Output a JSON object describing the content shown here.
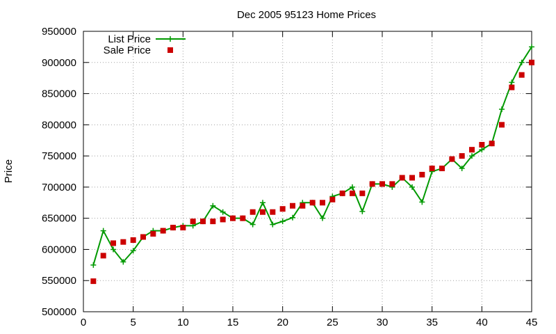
{
  "chart_data": {
    "type": "line",
    "title": "Dec 2005 95123 Home Prices",
    "xlabel": "",
    "ylabel": "Price",
    "xlim": [
      0,
      45
    ],
    "ylim": [
      500000,
      950000
    ],
    "xticks": [
      0,
      5,
      10,
      15,
      20,
      25,
      30,
      35,
      40,
      45
    ],
    "yticks": [
      500000,
      550000,
      600000,
      650000,
      700000,
      750000,
      800000,
      850000,
      900000,
      950000
    ],
    "grid": true,
    "legend": "top-left",
    "series": [
      {
        "name": "List Price",
        "style": "line-plus",
        "color": "#009900",
        "x": [
          1,
          2,
          3,
          4,
          5,
          6,
          7,
          8,
          9,
          10,
          11,
          12,
          13,
          14,
          15,
          16,
          17,
          18,
          19,
          20,
          21,
          22,
          23,
          24,
          25,
          26,
          27,
          28,
          29,
          30,
          31,
          32,
          33,
          34,
          35,
          36,
          37,
          38,
          39,
          40,
          41,
          42,
          43,
          44,
          45
        ],
        "values": [
          575000,
          630000,
          600000,
          580000,
          598000,
          620000,
          630000,
          630000,
          635000,
          638000,
          638000,
          645000,
          670000,
          660000,
          650000,
          650000,
          640000,
          675000,
          640000,
          645000,
          651000,
          675000,
          675000,
          650000,
          685000,
          690000,
          700000,
          661000,
          705000,
          705000,
          700000,
          715000,
          700000,
          676000,
          725000,
          730000,
          745000,
          730000,
          750000,
          760000,
          770000,
          825000,
          868000,
          900000,
          925000
        ]
      },
      {
        "name": "Sale Price",
        "style": "points-square",
        "color": "#cc0000",
        "x": [
          1,
          2,
          3,
          4,
          5,
          6,
          7,
          8,
          9,
          10,
          11,
          12,
          13,
          14,
          15,
          16,
          17,
          18,
          19,
          20,
          21,
          22,
          23,
          24,
          25,
          26,
          27,
          28,
          29,
          30,
          31,
          32,
          33,
          34,
          35,
          36,
          37,
          38,
          39,
          40,
          41,
          42,
          43,
          44,
          45
        ],
        "values": [
          549000,
          590000,
          610000,
          612000,
          615000,
          620000,
          625000,
          630000,
          635000,
          635000,
          645000,
          645000,
          645000,
          648000,
          650000,
          650000,
          660000,
          660000,
          660000,
          665000,
          670000,
          670000,
          675000,
          675000,
          680000,
          690000,
          690000,
          690000,
          705000,
          705000,
          705000,
          715000,
          715000,
          720000,
          730000,
          730000,
          745000,
          750000,
          760000,
          768000,
          770000,
          800000,
          860000,
          880000,
          900000
        ]
      }
    ]
  }
}
